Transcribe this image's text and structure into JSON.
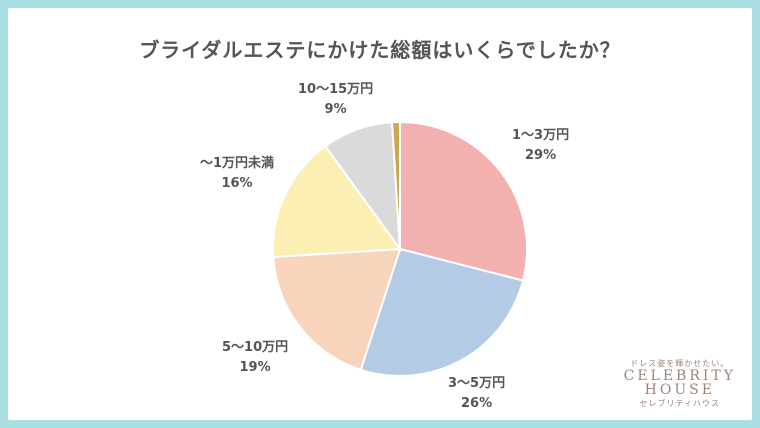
{
  "chart_data": {
    "type": "pie",
    "title": "ブライダルエステにかけた総額はいくらでしたか？",
    "slices": [
      {
        "label": "1〜3万円",
        "value": 29,
        "value_label": "29%",
        "color": "#f2b1ae"
      },
      {
        "label": "3〜5万円",
        "value": 26,
        "value_label": "26%",
        "color": "#b4cbe5"
      },
      {
        "label": "5〜10万円",
        "value": 19,
        "value_label": "19%",
        "color": "#f8d4bc"
      },
      {
        "label": "〜1万円未満",
        "value": 16,
        "value_label": "16%",
        "color": "#fcefb3"
      },
      {
        "label": "10〜15万円",
        "value": 9,
        "value_label": "9%",
        "color": "#dadada"
      },
      {
        "label": "",
        "value": 1,
        "value_label": "",
        "color": "#c8a94e"
      }
    ],
    "start_angle_deg": 0,
    "direction": "clockwise"
  },
  "brand": {
    "tagline": "ドレス姿を輝かせたい。",
    "line1": "CELEBRITY",
    "line2": "HOUSE",
    "kana": "セレブリティハウス"
  }
}
